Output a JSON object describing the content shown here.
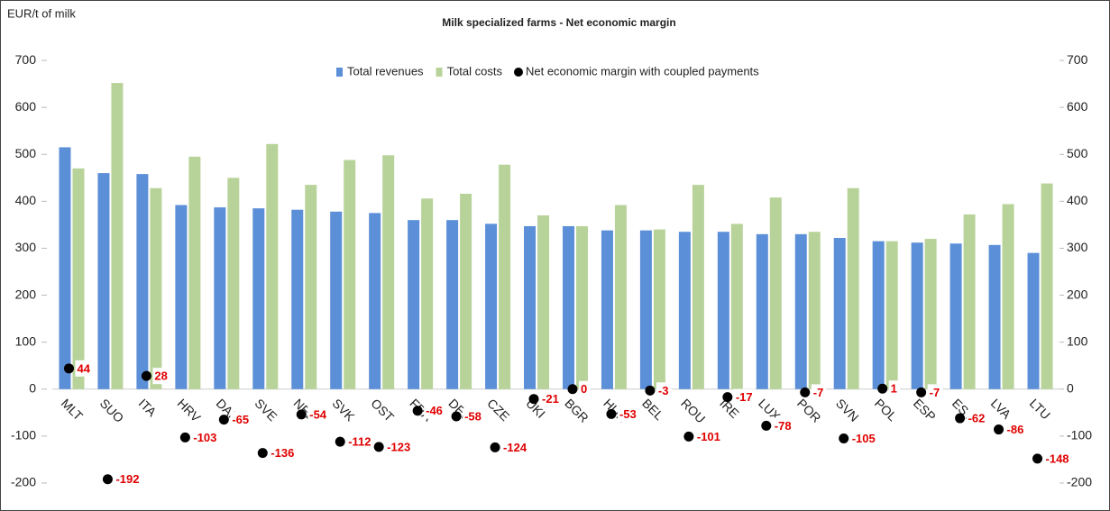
{
  "chart_data": {
    "type": "bar",
    "title": "Milk specialized farms - Net economic margin",
    "y_label": "EUR/t of milk",
    "categories": [
      "MLT",
      "SUO",
      "ITA",
      "HRV",
      "DAN",
      "SVE",
      "NED",
      "SVK",
      "OST",
      "FRA",
      "DEU",
      "CZE",
      "UKI",
      "BGR",
      "HUN",
      "BEL",
      "ROU",
      "IRE",
      "LUX",
      "POR",
      "SVN",
      "POL",
      "ESP",
      "EST",
      "LVA",
      "LTU"
    ],
    "series": [
      {
        "name": "Total revenues",
        "color": "#5b8fd8",
        "values": [
          515,
          460,
          458,
          392,
          387,
          385,
          382,
          378,
          375,
          360,
          360,
          352,
          347,
          347,
          338,
          338,
          335,
          335,
          330,
          330,
          322,
          315,
          312,
          310,
          307,
          290
        ]
      },
      {
        "name": "Total costs",
        "color": "#b8d39a",
        "values": [
          470,
          652,
          428,
          495,
          450,
          522,
          435,
          488,
          498,
          406,
          416,
          478,
          370,
          347,
          392,
          340,
          435,
          352,
          408,
          335,
          428,
          315,
          320,
          372,
          394,
          438
        ]
      },
      {
        "name": "Net economic margin with coupled payments",
        "color": "#000000",
        "axis": "y2",
        "values": [
          44,
          -192,
          28,
          -103,
          -65,
          -136,
          -54,
          -112,
          -123,
          -46,
          -58,
          -124,
          -21,
          0,
          -53,
          -3,
          -101,
          -17,
          -78,
          -7,
          -105,
          1,
          -7,
          -62,
          -86,
          -148
        ]
      }
    ],
    "ylim": [
      -250,
      750
    ],
    "yticks": [
      -200,
      -100,
      0,
      100,
      200,
      300,
      400,
      500,
      600,
      700
    ],
    "y2lim": [
      -250,
      750
    ],
    "y2ticks": [
      -200,
      -100,
      0,
      100,
      200,
      300,
      400,
      500,
      600,
      700
    ],
    "legend": "top"
  }
}
